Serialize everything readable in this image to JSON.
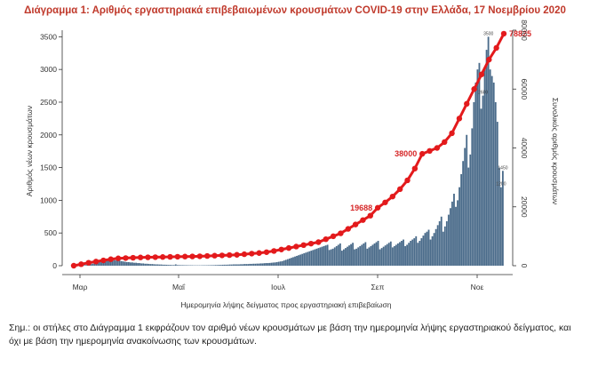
{
  "chart_data": {
    "type": "bar",
    "title": "Διάγραμμα 1: Αριθμός εργαστηριακά επιβεβαιωμένων κρουσμάτων COVID-19 στην Ελλάδα, 17 Νοεμβρίου 2020",
    "xlabel": "Ημερομηνία λήψης δείγματος προς εργαστηριακή επιβεβαίωση",
    "ylabel": "Αριθμός νέων κρουσμάτων",
    "y2label": "Συνολικός αριθμός κρουσμάτων",
    "x_ticks": [
      "Μαρ",
      "Μαΐ",
      "Ιουλ",
      "Σεπ",
      "Νοε"
    ],
    "ylim": [
      0,
      3600
    ],
    "y_ticks": [
      0,
      500,
      1000,
      1500,
      2000,
      2500,
      3000,
      3500
    ],
    "y2lim": [
      0,
      80000
    ],
    "y2_ticks": [
      0,
      20000,
      40000,
      60000,
      80000
    ],
    "x_start": "2020-02-26",
    "x_end": "2020-11-17",
    "grid": false,
    "legend": "none",
    "bar_color": "#4a6b8a",
    "line_color": "#e31a1c",
    "series": [
      {
        "name": "daily",
        "kind": "bar",
        "values": [
          3,
          1,
          2,
          4,
          6,
          8,
          10,
          14,
          20,
          25,
          30,
          40,
          50,
          60,
          70,
          80,
          90,
          95,
          100,
          100,
          95,
          90,
          85,
          80,
          80,
          75,
          70,
          65,
          60,
          55,
          55,
          50,
          50,
          45,
          45,
          40,
          40,
          35,
          35,
          30,
          30,
          28,
          25,
          25,
          22,
          20,
          20,
          18,
          18,
          15,
          15,
          14,
          12,
          12,
          10,
          10,
          20,
          10,
          9,
          8,
          8,
          7,
          7,
          6,
          6,
          6,
          5,
          5,
          5,
          5,
          5,
          6,
          6,
          6,
          7,
          7,
          8,
          8,
          10,
          10,
          12,
          12,
          14,
          15,
          15,
          16,
          18,
          18,
          20,
          20,
          20,
          20,
          22,
          22,
          25,
          25,
          25,
          28,
          28,
          30,
          30,
          32,
          32,
          35,
          35,
          38,
          40,
          40,
          42,
          45,
          48,
          50,
          55,
          60,
          65,
          70,
          80,
          90,
          100,
          110,
          120,
          130,
          140,
          150,
          160,
          170,
          180,
          190,
          200,
          210,
          220,
          230,
          240,
          250,
          260,
          270,
          280,
          290,
          300,
          310,
          320,
          240,
          250,
          260,
          280,
          300,
          320,
          340,
          230,
          250,
          270,
          290,
          310,
          330,
          350,
          250,
          260,
          280,
          300,
          320,
          340,
          360,
          260,
          280,
          300,
          320,
          340,
          360,
          380,
          250,
          270,
          290,
          310,
          330,
          350,
          370,
          280,
          300,
          320,
          340,
          360,
          380,
          400,
          300,
          320,
          350,
          380,
          400,
          420,
          450,
          350,
          380,
          420,
          460,
          500,
          520,
          550,
          400,
          450,
          500,
          560,
          620,
          680,
          750,
          520,
          600,
          680,
          780,
          880,
          980,
          1100,
          900,
          1000,
          1200,
          1400,
          1600,
          1800,
          2000,
          1500,
          1700,
          2100,
          2500,
          2800,
          3000,
          3100,
          2400,
          2600,
          3000,
          3300,
          3500,
          3000,
          2900,
          2800,
          2500,
          2200,
          1500,
          1200,
          1450
        ],
        "labels": [
          {
            "value": 2600,
            "text": "2600"
          },
          {
            "value": 3500,
            "text": "3500"
          },
          {
            "value": 1200,
            "text": "1200"
          },
          {
            "value": 1450,
            "text": "1450"
          }
        ]
      },
      {
        "name": "cumulative",
        "kind": "line",
        "axis": "right",
        "values": [
          0,
          500,
          1000,
          1400,
          1800,
          2200,
          2500,
          2600,
          2700,
          2800,
          2850,
          2900,
          2950,
          3000,
          3050,
          3100,
          3150,
          3200,
          3300,
          3400,
          3500,
          3600,
          3700,
          3900,
          4100,
          4300,
          4600,
          5000,
          5500,
          6000,
          6500,
          7000,
          7500,
          8000,
          9000,
          10000,
          11000,
          12500,
          14000,
          15500,
          17000,
          19688,
          21500,
          23500,
          26000,
          29000,
          33000,
          38000,
          39000,
          40000,
          42000,
          45000,
          50000,
          55000,
          60000,
          65000,
          70000,
          74000,
          78825
        ],
        "annotations": [
          {
            "value": 19688,
            "text": "19688"
          },
          {
            "value": 38000,
            "text": "38000"
          },
          {
            "value": 78825,
            "text": "78825"
          }
        ]
      }
    ]
  },
  "note": "Σημ.: οι στήλες στο Διάγραμμα 1 εκφράζουν τον αριθμό νέων κρουσμάτων με βάση την ημερομηνία λήψης εργαστηριακού δείγματος, και όχι με βάση την ημερομηνία ανακοίνωσης των κρουσμάτων."
}
